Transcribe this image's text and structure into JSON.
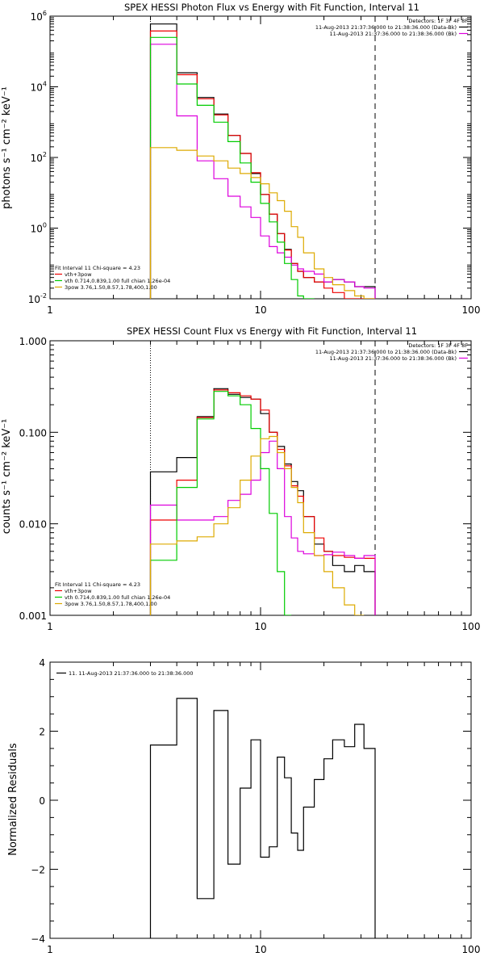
{
  "chart_data": [
    {
      "type": "line",
      "title": "SPEX HESSI Photon Flux vs Energy with Fit Function, Interval 11",
      "xlabel": "",
      "ylabel": "photons s⁻¹ cm⁻² keV⁻¹",
      "xscale": "log",
      "yscale": "log",
      "xlim": [
        1,
        100
      ],
      "ylim": [
        0.01,
        1000000
      ],
      "x_ticks": [
        "1",
        "10",
        "100"
      ],
      "y_ticks": [
        {
          "base": "10",
          "exp": "6",
          "value": 1000000
        },
        {
          "base": "10",
          "exp": "4",
          "value": 10000
        },
        {
          "base": "10",
          "exp": "2",
          "value": 100
        },
        {
          "base": "10",
          "exp": "0",
          "value": 1
        },
        {
          "base": "10",
          "exp": "-2",
          "value": 0.01
        }
      ],
      "legend_top": {
        "header": "Detectors: 1F 3F 4F 8F",
        "entries": [
          {
            "label": "11-Aug-2013 21:37:36.000 to 21:38:36.000 (Data-Bk)",
            "color": "#000000"
          },
          {
            "label": "11-Aug-2013 21:37:36.000 to 21:38:36.000 (Bk)",
            "color": "#dd00dd"
          }
        ]
      },
      "legend_bottom": {
        "header": "Fit Interval 11    Chi-square = 4.23",
        "entries": [
          {
            "label": "vth+3pow",
            "color": "#ee0000"
          },
          {
            "label": "vth 0.714,0.839,1.00  full chian 1.26e-04",
            "color": "#00cc00"
          },
          {
            "label": "3pow 3.76,1.50,8.57,1.78,400,1.00",
            "color": "#ddaa00"
          }
        ]
      },
      "vlines": [
        {
          "x": 3,
          "style": "dotted"
        },
        {
          "x": 35,
          "style": "dashed"
        }
      ],
      "bin_edges": [
        3,
        4,
        5,
        6,
        7,
        8,
        9,
        10,
        11,
        12,
        13,
        14,
        15,
        16,
        18,
        20,
        22,
        25,
        28,
        31,
        35
      ],
      "series": [
        {
          "name": "Data-Bk",
          "color": "#000000",
          "values": [
            600000,
            25000,
            5000,
            1700,
            420,
            130,
            35,
            9,
            2.5,
            0.7,
            0.25,
            0.1,
            0.06,
            0.04,
            0.03,
            0.03,
            0.035,
            0.03,
            0.022,
            0.022
          ]
        },
        {
          "name": "Bk",
          "color": "#dd00dd",
          "values": [
            160000,
            1500,
            80,
            25,
            8,
            4,
            2,
            0.6,
            0.3,
            0.2,
            0.15,
            0.09,
            0.07,
            0.06,
            0.05,
            0.03,
            0.035,
            0.03,
            0.022,
            0.02
          ]
        },
        {
          "name": "vth+3pow",
          "color": "#ee0000",
          "values": [
            380000,
            22000,
            4600,
            1600,
            420,
            130,
            37,
            9,
            2.5,
            0.7,
            0.24,
            0.1,
            0.06,
            0.04,
            0.03,
            0.02,
            0.015,
            0.01,
            0.01,
            0.01
          ]
        },
        {
          "name": "vth",
          "color": "#00cc00",
          "values": [
            250000,
            12000,
            3000,
            1000,
            280,
            70,
            20,
            5,
            1.5,
            0.4,
            0.1,
            0.035,
            0.012,
            0.01
          ]
        },
        {
          "name": "3pow",
          "color": "#ddaa00",
          "values": [
            190,
            160,
            110,
            80,
            50,
            35,
            27,
            18,
            10,
            6,
            3,
            1.1,
            0.55,
            0.2,
            0.07,
            0.04,
            0.025,
            0.017,
            0.012,
            0.01
          ]
        }
      ]
    },
    {
      "type": "line",
      "title": "SPEX HESSI Count Flux vs Energy with Fit Function, Interval 11",
      "xlabel": "",
      "ylabel": "counts s⁻¹ cm⁻² keV⁻¹",
      "xscale": "log",
      "yscale": "log",
      "xlim": [
        1,
        100
      ],
      "ylim": [
        0.001,
        1
      ],
      "x_ticks": [
        "1",
        "10",
        "100"
      ],
      "y_ticks": [
        {
          "label": "1.000",
          "value": 1
        },
        {
          "label": "0.100",
          "value": 0.1
        },
        {
          "label": "0.010",
          "value": 0.01
        },
        {
          "label": "0.001",
          "value": 0.001
        }
      ],
      "legend_top": {
        "header": "Detectors: 1F 3F 4F 8F",
        "entries": [
          {
            "label": "11-Aug-2013 21:37:36.000 to 21:38:36.000 (Data-Bk)",
            "color": "#000000"
          },
          {
            "label": "11-Aug-2013 21:37:36.000 to 21:38:36.000 (Bk)",
            "color": "#dd00dd"
          }
        ]
      },
      "legend_bottom": {
        "header": "Fit Interval 11    Chi-square = 4.23",
        "entries": [
          {
            "label": "vth+3pow",
            "color": "#ee0000"
          },
          {
            "label": "vth 0.714,0.839,1.00  full chian 1.26e-04",
            "color": "#00cc00"
          },
          {
            "label": "3pow 3.76,1.50,8.57,1.78,400,1.00",
            "color": "#ddaa00"
          }
        ]
      },
      "vlines": [
        {
          "x": 3,
          "style": "dotted"
        },
        {
          "x": 35,
          "style": "dashed"
        }
      ],
      "bin_edges": [
        3,
        4,
        5,
        6,
        7,
        8,
        9,
        10,
        11,
        12,
        13,
        14,
        15,
        16,
        18,
        20,
        22,
        25,
        28,
        31,
        35
      ],
      "series": [
        {
          "name": "Data-Bk",
          "color": "#000000",
          "values": [
            0.037,
            0.053,
            0.148,
            0.3,
            0.26,
            0.24,
            0.23,
            0.16,
            0.1,
            0.07,
            0.045,
            0.029,
            0.023,
            0.012,
            0.006,
            0.005,
            0.0035,
            0.003,
            0.0035,
            0.003
          ]
        },
        {
          "name": "Bk",
          "color": "#dd00dd",
          "values": [
            0.016,
            0.011,
            0.011,
            0.012,
            0.018,
            0.021,
            0.03,
            0.06,
            0.08,
            0.04,
            0.012,
            0.007,
            0.005,
            0.0047,
            0.0045,
            0.0046,
            0.0049,
            0.0045,
            0.0042,
            0.0045
          ]
        },
        {
          "name": "vth+3pow",
          "color": "#ee0000",
          "values": [
            0.011,
            0.03,
            0.145,
            0.29,
            0.27,
            0.25,
            0.23,
            0.175,
            0.1,
            0.065,
            0.043,
            0.026,
            0.02,
            0.012,
            0.007,
            0.005,
            0.0045,
            0.0043,
            0.0042,
            0.0042
          ]
        },
        {
          "name": "vth",
          "color": "#00cc00",
          "values": [
            0.004,
            0.025,
            0.14,
            0.28,
            0.25,
            0.2,
            0.11,
            0.04,
            0.013,
            0.003,
            0.001
          ]
        },
        {
          "name": "3pow",
          "color": "#ddaa00",
          "values": [
            0.006,
            0.0065,
            0.0072,
            0.01,
            0.015,
            0.03,
            0.055,
            0.085,
            0.09,
            0.06,
            0.04,
            0.025,
            0.017,
            0.008,
            0.0045,
            0.003,
            0.002,
            0.0013,
            0.001
          ]
        }
      ]
    },
    {
      "type": "line",
      "title": "",
      "xlabel": "",
      "ylabel": "Normalized Residuals",
      "xscale": "log",
      "yscale": "linear",
      "xlim": [
        1,
        100
      ],
      "ylim": [
        -4,
        4
      ],
      "x_ticks": [
        "1",
        "10",
        "100"
      ],
      "y_ticks": [
        "-4",
        "-2",
        "0",
        "2",
        "4"
      ],
      "legend": [
        {
          "label": "11. 11-Aug-2013 21:37:36.000 to 21:38:36.000",
          "color": "#000000"
        }
      ],
      "bin_edges": [
        3,
        4,
        5,
        6,
        7,
        8,
        9,
        10,
        11,
        12,
        13,
        14,
        15,
        16,
        18,
        20,
        22,
        25,
        28,
        31,
        35
      ],
      "series": [
        {
          "name": "11. 11-Aug-2013 21:37:36.000 to 21:38:36.000",
          "color": "#000000",
          "values": [
            1.6,
            2.95,
            -2.85,
            2.6,
            -1.85,
            0.35,
            1.75,
            -1.65,
            -1.35,
            1.25,
            0.65,
            -0.95,
            -1.45,
            -0.2,
            0.6,
            1.2,
            1.75,
            1.55,
            2.2,
            1.5
          ]
        }
      ]
    }
  ]
}
